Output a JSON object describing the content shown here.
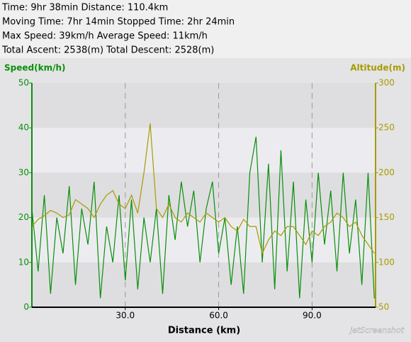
{
  "chart_data": {
    "type": "line",
    "summary": [
      "Time: 9hr 38min  Distance: 110.4km",
      "Moving Time: 7hr 14min  Stopped Time: 2hr 24min",
      "Max Speed: 39km/h  Average Speed: 11km/h",
      "Total Ascent: 2538(m)  Total Descent: 2528(m)"
    ],
    "y_label": "Speed(km/h)",
    "y2_label": "Altitude(m)",
    "x_label": "Distance (km)",
    "watermark": "jetScreenshot",
    "x": [
      0,
      2,
      4,
      6,
      8,
      10,
      12,
      14,
      16,
      18,
      20,
      22,
      24,
      26,
      28,
      30,
      32,
      34,
      36,
      38,
      40,
      42,
      44,
      46,
      48,
      50,
      52,
      54,
      56,
      58,
      60,
      62,
      64,
      66,
      68,
      70,
      72,
      74,
      76,
      78,
      80,
      82,
      84,
      86,
      88,
      90,
      92,
      94,
      96,
      98,
      100,
      102,
      104,
      106,
      108,
      110
    ],
    "xlim": [
      0,
      110.4
    ],
    "xticks": [
      {
        "value": 30,
        "label": "30.0"
      },
      {
        "value": 60,
        "label": "60.0"
      },
      {
        "value": 90,
        "label": "90.0"
      }
    ],
    "ylim": [
      0,
      50
    ],
    "yticks": [
      0,
      10,
      20,
      30,
      40,
      50
    ],
    "y2lim": [
      50,
      300
    ],
    "y2ticks": [
      50,
      100,
      150,
      200,
      250,
      300
    ],
    "series": [
      {
        "name": "Speed",
        "color": "#0a8f0a",
        "values": [
          22,
          8,
          25,
          3,
          20,
          12,
          27,
          5,
          22,
          14,
          28,
          2,
          18,
          10,
          25,
          6,
          24,
          4,
          20,
          10,
          22,
          3,
          25,
          15,
          28,
          18,
          26,
          10,
          22,
          28,
          12,
          20,
          5,
          18,
          3,
          30,
          38,
          10,
          32,
          4,
          35,
          8,
          28,
          2,
          24,
          10,
          30,
          14,
          26,
          8,
          30,
          12,
          24,
          5,
          30,
          2
        ]
      },
      {
        "name": "Altitude",
        "color": "#a89a00",
        "axis": "y2",
        "values": [
          140,
          148,
          152,
          158,
          155,
          150,
          153,
          170,
          165,
          160,
          150,
          165,
          175,
          180,
          165,
          160,
          175,
          155,
          200,
          255,
          160,
          150,
          165,
          150,
          145,
          155,
          150,
          145,
          155,
          150,
          145,
          150,
          140,
          135,
          148,
          140,
          140,
          110,
          125,
          135,
          130,
          140,
          140,
          130,
          120,
          135,
          130,
          140,
          145,
          155,
          150,
          140,
          145,
          130,
          120,
          110
        ]
      }
    ]
  }
}
